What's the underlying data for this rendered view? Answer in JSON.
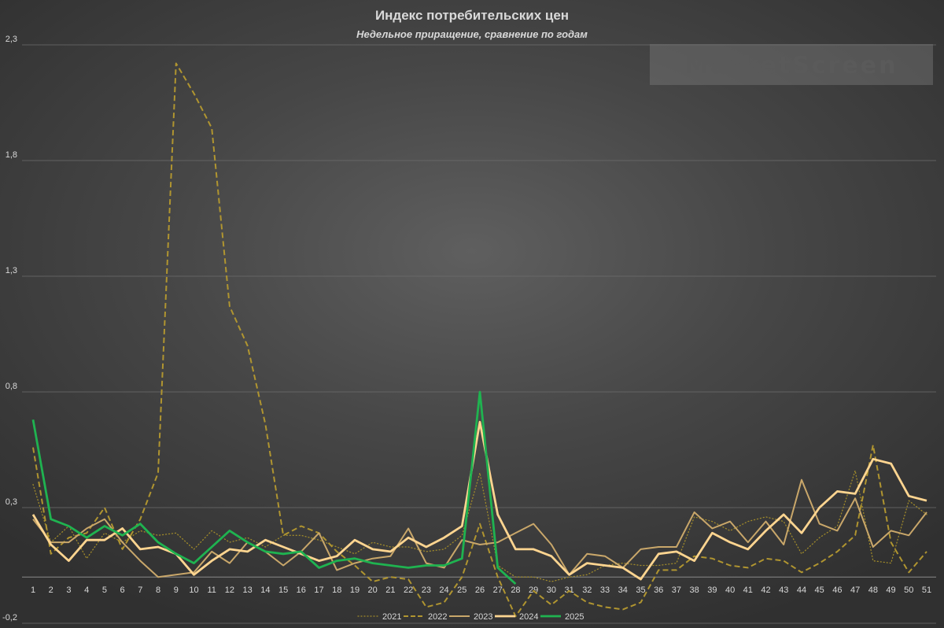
{
  "chart_data": {
    "type": "line",
    "title": "Индекс потребительских цен",
    "subtitle": "Недельное приращение, сравнение по годам",
    "watermark": "MarketScreen",
    "xlabel": "",
    "ylabel": "",
    "ylim": [
      -0.2,
      2.3
    ],
    "yticks": [
      -0.2,
      0.3,
      0.8,
      1.3,
      1.8,
      2.3
    ],
    "ytick_labels": [
      "-0,2",
      "0,3",
      "0,8",
      "1,3",
      "1,8",
      "2,3"
    ],
    "x": [
      1,
      2,
      3,
      4,
      5,
      6,
      7,
      8,
      9,
      10,
      11,
      12,
      13,
      14,
      15,
      16,
      17,
      18,
      19,
      20,
      21,
      22,
      23,
      24,
      25,
      26,
      27,
      28,
      29,
      30,
      31,
      32,
      33,
      34,
      35,
      36,
      37,
      38,
      39,
      40,
      41,
      42,
      43,
      44,
      45,
      46,
      47,
      48,
      49,
      50,
      51
    ],
    "grid": "horizontal",
    "legend_position": "bottom",
    "series": [
      {
        "name": "2021",
        "color": "#a08a2a",
        "style": "dotted",
        "width": 1.3,
        "values": [
          0.4,
          0.15,
          0.22,
          0.08,
          0.19,
          0.15,
          0.2,
          0.18,
          0.19,
          0.12,
          0.2,
          0.15,
          0.17,
          0.13,
          0.18,
          0.18,
          0.16,
          0.13,
          0.1,
          0.15,
          0.13,
          0.13,
          0.11,
          0.12,
          0.18,
          0.45,
          0.05,
          0.0,
          0.0,
          -0.02,
          0.0,
          0.01,
          0.05,
          0.06,
          0.05,
          0.05,
          0.06,
          0.26,
          0.24,
          0.2,
          0.24,
          0.26,
          0.24,
          0.1,
          0.17,
          0.22,
          0.46,
          0.07,
          0.06,
          0.33,
          0.27
        ]
      },
      {
        "name": "2022",
        "color": "#b09530",
        "style": "dashed",
        "width": 2,
        "values": [
          0.56,
          0.1,
          0.17,
          0.19,
          0.3,
          0.12,
          0.25,
          0.45,
          2.22,
          2.09,
          1.94,
          1.17,
          1.0,
          0.66,
          0.18,
          0.22,
          0.19,
          0.11,
          0.05,
          -0.02,
          0.0,
          -0.01,
          -0.13,
          -0.11,
          0.0,
          0.23,
          0.0,
          -0.17,
          -0.06,
          -0.12,
          -0.06,
          -0.11,
          -0.13,
          -0.14,
          -0.11,
          0.03,
          0.03,
          0.09,
          0.08,
          0.05,
          0.04,
          0.08,
          0.07,
          0.02,
          0.06,
          0.11,
          0.18,
          0.57,
          0.15,
          0.02,
          0.11
        ]
      },
      {
        "name": "2023",
        "color": "#c9a76a",
        "style": "solid",
        "width": 2,
        "values": [
          0.25,
          0.15,
          0.15,
          0.21,
          0.25,
          0.15,
          0.07,
          0.0,
          0.01,
          0.02,
          0.11,
          0.06,
          0.15,
          0.11,
          0.05,
          0.11,
          0.19,
          0.03,
          0.06,
          0.08,
          0.09,
          0.21,
          0.06,
          0.04,
          0.16,
          0.14,
          0.15,
          0.19,
          0.23,
          0.14,
          0.01,
          0.1,
          0.09,
          0.04,
          0.12,
          0.13,
          0.13,
          0.28,
          0.21,
          0.24,
          0.15,
          0.24,
          0.14,
          0.42,
          0.23,
          0.2,
          0.34,
          0.13,
          0.2,
          0.18,
          0.28
        ]
      },
      {
        "name": "2024",
        "color": "#ffd590",
        "style": "solid",
        "width": 2.8,
        "values": [
          0.27,
          0.14,
          0.07,
          0.16,
          0.16,
          0.21,
          0.12,
          0.13,
          0.1,
          0.01,
          0.07,
          0.12,
          0.11,
          0.16,
          0.13,
          0.1,
          0.07,
          0.09,
          0.16,
          0.12,
          0.11,
          0.17,
          0.13,
          0.17,
          0.22,
          0.67,
          0.27,
          0.12,
          0.12,
          0.09,
          0.01,
          0.06,
          0.05,
          0.04,
          -0.01,
          0.1,
          0.11,
          0.07,
          0.19,
          0.15,
          0.12,
          0.2,
          0.27,
          0.19,
          0.3,
          0.37,
          0.36,
          0.51,
          0.49,
          0.35,
          0.33
        ]
      },
      {
        "name": "2025",
        "color": "#1fb350",
        "style": "solid",
        "width": 2.8,
        "values": [
          0.68,
          0.25,
          0.22,
          0.17,
          0.22,
          0.18,
          0.23,
          0.15,
          0.1,
          0.06,
          0.13,
          0.2,
          0.15,
          0.11,
          0.1,
          0.11,
          0.04,
          0.07,
          0.08,
          0.06,
          0.05,
          0.04,
          0.05,
          0.05,
          0.08,
          0.8,
          0.04,
          -0.03,
          null,
          null,
          null,
          null,
          null,
          null,
          null,
          null,
          null,
          null,
          null,
          null,
          null,
          null,
          null,
          null,
          null,
          null,
          null,
          null,
          null,
          null,
          null
        ]
      }
    ]
  }
}
